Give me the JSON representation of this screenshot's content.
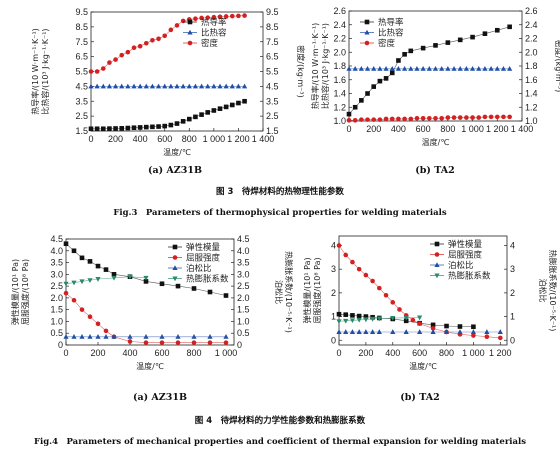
{
  "fig3": {
    "caption_zh": "图 3　待焊材料的热物理性能参数",
    "caption_en": "Fig.3　Parameters of thermophysical properties for welding materials"
  },
  "fig4": {
    "caption_zh": "图 4　待焊材料的力学性能参数和热膨胀系数",
    "caption_en": "Fig.4　Parameters of mechanical properties and coefficient of thermal expansion for welding materials"
  },
  "chart_data": [
    {
      "id": "a",
      "type": "line",
      "subcaption": "(a) AZ31B",
      "xlabel": "温度/℃",
      "ylabel_left": [
        "热导率/(10 W·m⁻¹·K⁻¹)",
        "比热容/(10³ J·kg⁻¹·K⁻¹)"
      ],
      "ylabel_right": "密度/(kg·m⁻³)",
      "xlim": [
        0,
        1400
      ],
      "ylim_left": [
        1.5,
        9.5
      ],
      "ylim_right": [
        1.5,
        9.5
      ],
      "x_ticks": [
        "0",
        "200",
        "400",
        "600",
        "800",
        "1 000",
        "1 200",
        "1 400"
      ],
      "y_ticks": [
        "1.5",
        "2.5",
        "3.5",
        "4.5",
        "5.5",
        "6.5",
        "7.5",
        "8.5",
        "9.5"
      ],
      "legend_position": "top-right",
      "series": [
        {
          "name": "热导率",
          "marker": "square",
          "color": "#111111",
          "x": [
            0,
            50,
            100,
            150,
            200,
            250,
            300,
            350,
            400,
            450,
            500,
            550,
            600,
            650,
            700,
            750,
            800,
            850,
            900,
            950,
            1000,
            1050,
            1100,
            1150,
            1200,
            1250
          ],
          "y": [
            1.65,
            1.65,
            1.65,
            1.66,
            1.67,
            1.68,
            1.7,
            1.72,
            1.74,
            1.76,
            1.78,
            1.8,
            1.83,
            1.9,
            2.0,
            2.15,
            2.3,
            2.45,
            2.6,
            2.75,
            2.88,
            3.0,
            3.12,
            3.25,
            3.38,
            3.5
          ]
        },
        {
          "name": "比热容",
          "marker": "triangle",
          "color": "#1f4fa8",
          "x": [
            0,
            50,
            100,
            150,
            200,
            250,
            300,
            350,
            400,
            450,
            500,
            550,
            600,
            650,
            700,
            750,
            800,
            850,
            900,
            950,
            1000,
            1050,
            1100,
            1150,
            1200,
            1250
          ],
          "y": [
            4.5,
            4.5,
            4.5,
            4.5,
            4.5,
            4.5,
            4.5,
            4.5,
            4.5,
            4.5,
            4.5,
            4.5,
            4.5,
            4.5,
            4.5,
            4.5,
            4.5,
            4.5,
            4.5,
            4.5,
            4.5,
            4.5,
            4.5,
            4.5,
            4.5,
            4.5
          ]
        },
        {
          "name": "密度",
          "marker": "circle",
          "color": "#d42020",
          "x": [
            0,
            50,
            100,
            150,
            200,
            250,
            300,
            350,
            400,
            450,
            500,
            550,
            600,
            650,
            700,
            750,
            800,
            850,
            900,
            950,
            1000,
            1050,
            1100,
            1150,
            1200,
            1250
          ],
          "y": [
            5.5,
            5.5,
            5.7,
            6.1,
            6.3,
            6.6,
            6.8,
            7.1,
            7.2,
            7.4,
            7.6,
            7.7,
            7.9,
            8.3,
            8.6,
            8.9,
            9.0,
            9.05,
            9.1,
            9.12,
            9.15,
            9.18,
            9.2,
            9.22,
            9.24,
            9.26
          ]
        }
      ]
    },
    {
      "id": "b",
      "type": "line",
      "subcaption": "(b) TA2",
      "xlabel": "温度/℃",
      "ylabel_left": [
        "热导率/(10 W·m⁻¹·K⁻¹)",
        "比热容/(10³ J·kg⁻¹·K⁻¹)"
      ],
      "ylabel_right": "密度/(kg·m⁻³)",
      "xlim": [
        0,
        1400
      ],
      "ylim_left": [
        1.0,
        2.6
      ],
      "ylim_right": [
        1.0,
        2.6
      ],
      "x_ticks": [
        "0",
        "200",
        "400",
        "600",
        "800",
        "1 000",
        "1 200",
        "1 400"
      ],
      "y_ticks": [
        "1.0",
        "1.2",
        "1.4",
        "1.6",
        "1.8",
        "2.0",
        "2.2",
        "2.4",
        "2.6"
      ],
      "legend_position": "top-left",
      "series": [
        {
          "name": "热导率",
          "marker": "square",
          "color": "#111111",
          "x": [
            0,
            50,
            100,
            150,
            200,
            250,
            300,
            350,
            400,
            450,
            500,
            600,
            700,
            800,
            900,
            1000,
            1100,
            1200,
            1300
          ],
          "y": [
            1.1,
            1.2,
            1.3,
            1.4,
            1.5,
            1.58,
            1.62,
            1.7,
            1.88,
            1.97,
            2.02,
            2.06,
            2.1,
            2.14,
            2.18,
            2.22,
            2.27,
            2.32,
            2.37
          ]
        },
        {
          "name": "比热容",
          "marker": "triangle",
          "color": "#1f4fa8",
          "x": [
            0,
            50,
            100,
            150,
            200,
            250,
            300,
            350,
            400,
            450,
            500,
            550,
            600,
            650,
            700,
            750,
            800,
            850,
            900,
            950,
            1000,
            1050,
            1100,
            1150,
            1200,
            1250,
            1300
          ],
          "y": [
            1.76,
            1.76,
            1.76,
            1.76,
            1.76,
            1.76,
            1.76,
            1.76,
            1.76,
            1.76,
            1.76,
            1.76,
            1.76,
            1.76,
            1.76,
            1.76,
            1.76,
            1.76,
            1.76,
            1.76,
            1.76,
            1.76,
            1.76,
            1.76,
            1.76,
            1.76,
            1.76
          ]
        },
        {
          "name": "密度",
          "marker": "circle",
          "color": "#d42020",
          "x": [
            0,
            50,
            100,
            150,
            200,
            250,
            300,
            350,
            400,
            450,
            500,
            550,
            600,
            650,
            700,
            750,
            800,
            850,
            900,
            950,
            1000,
            1050,
            1100,
            1150,
            1200,
            1250,
            1300
          ],
          "y": [
            1.01,
            1.01,
            1.02,
            1.02,
            1.02,
            1.02,
            1.03,
            1.03,
            1.03,
            1.03,
            1.03,
            1.04,
            1.04,
            1.04,
            1.04,
            1.04,
            1.05,
            1.05,
            1.05,
            1.05,
            1.05,
            1.05,
            1.06,
            1.06,
            1.06,
            1.06,
            1.06
          ]
        }
      ]
    },
    {
      "id": "c",
      "type": "line",
      "subcaption": "(a) AZ31B",
      "xlabel": "温度/℃",
      "ylabel_left": [
        "弹性模量/(10¹ Pa)",
        "屈服强度/(10⁸ Pa)"
      ],
      "ylabel_right": [
        "泊松比",
        "热膨胀系数/(10⁻⁵·K⁻¹)"
      ],
      "xlim": [
        0,
        1050
      ],
      "ylim_left": [
        0,
        4.5
      ],
      "ylim_right": [
        0,
        4.5
      ],
      "x_ticks": [
        "0",
        "200",
        "400",
        "600",
        "800",
        "1 000"
      ],
      "y_ticks": [
        "0",
        "0.5",
        "1.0",
        "1.5",
        "2.0",
        "2.5",
        "3.0",
        "3.5",
        "4.0",
        "4.5"
      ],
      "legend_position": "top-right",
      "series": [
        {
          "name": "弹性模量",
          "marker": "square",
          "color": "#111111",
          "x": [
            0,
            50,
            100,
            150,
            200,
            250,
            300,
            400,
            500,
            600,
            700,
            800,
            900,
            1000
          ],
          "y": [
            4.3,
            4.0,
            3.7,
            3.55,
            3.35,
            3.2,
            3.0,
            2.9,
            2.7,
            2.6,
            2.5,
            2.4,
            2.25,
            2.1
          ]
        },
        {
          "name": "屈服强度",
          "marker": "circle",
          "color": "#d42020",
          "x": [
            0,
            50,
            100,
            150,
            200,
            250,
            300,
            400,
            500,
            600,
            700,
            800,
            900,
            1000
          ],
          "y": [
            2.2,
            1.9,
            1.5,
            1.2,
            0.9,
            0.6,
            0.35,
            0.15,
            0.1,
            0.1,
            0.1,
            0.1,
            0.1,
            0.1
          ]
        },
        {
          "name": "泊松比",
          "marker": "triangle",
          "color": "#1f4fa8",
          "x": [
            0,
            50,
            100,
            150,
            200,
            250,
            300,
            400,
            500,
            600,
            700,
            800,
            900,
            1000
          ],
          "y": [
            0.35,
            0.35,
            0.35,
            0.35,
            0.35,
            0.35,
            0.35,
            0.35,
            0.35,
            0.35,
            0.35,
            0.35,
            0.35,
            0.35
          ]
        },
        {
          "name": "热膨胀系数",
          "marker": "triangle-down",
          "color": "#2a8a6e",
          "x": [
            0,
            50,
            100,
            150,
            200,
            300,
            400,
            500
          ],
          "y": [
            2.6,
            2.65,
            2.7,
            2.75,
            2.8,
            2.85,
            2.9,
            2.85
          ]
        }
      ]
    },
    {
      "id": "d",
      "type": "line",
      "subcaption": "(b) TA2",
      "xlabel": "温度/℃",
      "ylabel_left": [
        "弹性模量/(10¹ Pa)",
        "屈服强度/(10⁸ Pa)"
      ],
      "ylabel_right": [
        "泊松比",
        "热膨胀系数/(10⁻⁵·K⁻¹)"
      ],
      "xlim": [
        0,
        1250
      ],
      "ylim_left": [
        -0.2,
        4.4
      ],
      "ylim_right": [
        -0.2,
        4.4
      ],
      "x_ticks": [
        "0",
        "200",
        "400",
        "600",
        "800",
        "1 000",
        "1 200"
      ],
      "y_ticks": [
        "0",
        "1",
        "2",
        "3",
        "4"
      ],
      "legend_position": "top-right",
      "series": [
        {
          "name": "弹性模量",
          "marker": "square",
          "color": "#111111",
          "x": [
            0,
            50,
            100,
            150,
            200,
            250,
            300,
            400,
            500,
            600,
            700,
            800,
            900,
            1000
          ],
          "y": [
            1.1,
            1.08,
            1.05,
            1.02,
            1.0,
            0.97,
            0.94,
            0.9,
            0.82,
            0.72,
            0.65,
            0.6,
            0.58,
            0.57
          ]
        },
        {
          "name": "屈服强度",
          "marker": "circle",
          "color": "#d42020",
          "x": [
            0,
            50,
            100,
            150,
            200,
            250,
            300,
            350,
            400,
            450,
            500,
            550,
            600,
            700,
            800,
            900,
            1000,
            1100,
            1200
          ],
          "y": [
            4.0,
            3.6,
            3.3,
            3.0,
            2.75,
            2.5,
            2.2,
            1.9,
            1.6,
            1.3,
            1.05,
            0.85,
            0.7,
            0.5,
            0.35,
            0.25,
            0.2,
            0.15,
            0.1
          ]
        },
        {
          "name": "泊松比",
          "marker": "triangle",
          "color": "#1f4fa8",
          "x": [
            0,
            50,
            100,
            150,
            200,
            250,
            300,
            400,
            500,
            600,
            700,
            800,
            900,
            1000,
            1100,
            1200
          ],
          "y": [
            0.35,
            0.35,
            0.35,
            0.35,
            0.35,
            0.35,
            0.35,
            0.35,
            0.35,
            0.35,
            0.35,
            0.35,
            0.35,
            0.35,
            0.35,
            0.35
          ]
        },
        {
          "name": "热膨胀系数",
          "marker": "triangle-down",
          "color": "#2a8a6e",
          "x": [
            0,
            50,
            100,
            150,
            200,
            250,
            300,
            400,
            500,
            600
          ],
          "y": [
            0.8,
            0.82,
            0.84,
            0.86,
            0.88,
            0.9,
            0.92,
            0.94,
            0.95,
            0.96
          ]
        }
      ]
    }
  ]
}
